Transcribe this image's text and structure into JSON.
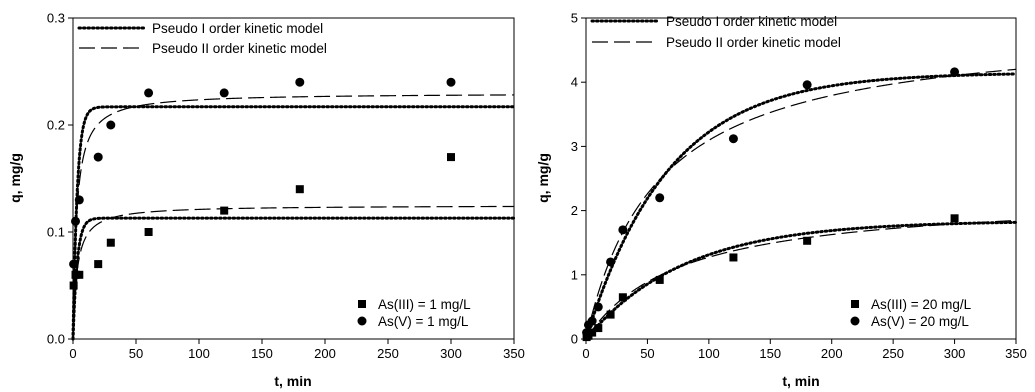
{
  "chart_data": [
    {
      "type": "scatter",
      "xlabel": "t, min",
      "ylabel": "q, mg/g",
      "xlim": [
        0,
        350
      ],
      "ylim": [
        0,
        0.3
      ],
      "x_ticks": [
        "0",
        "50",
        "100",
        "150",
        "200",
        "250",
        "300",
        "350"
      ],
      "y_ticks": [
        "0.0",
        "0.1",
        "0.2",
        "0.3"
      ],
      "x_tick_values": [
        0,
        50,
        100,
        150,
        200,
        250,
        300,
        350
      ],
      "y_tick_values": [
        0,
        0.1,
        0.2,
        0.3
      ],
      "grid": false,
      "legend_models": {
        "placement": "top-left",
        "entries": [
          {
            "label": "Pseudo I order kinetic model",
            "style": "dotted"
          },
          {
            "label": "Pseudo II order kinetic model",
            "style": "dashed"
          }
        ]
      },
      "legend_series": {
        "placement": "bottom-right",
        "entries": [
          "As(III) = 1 mg/L",
          "As(V) = 1 mg/L"
        ]
      },
      "series": [
        {
          "name": "As(III) = 1 mg/L",
          "marker": "square",
          "x": [
            0.5,
            2,
            5,
            20,
            30,
            60,
            120,
            180,
            300
          ],
          "y": [
            0.05,
            0.06,
            0.06,
            0.07,
            0.09,
            0.1,
            0.12,
            0.14,
            0.17
          ]
        },
        {
          "name": "As(V) = 1 mg/L",
          "marker": "circle",
          "x": [
            0.5,
            2,
            5,
            20,
            30,
            60,
            120,
            180,
            300
          ],
          "y": [
            0.07,
            0.11,
            0.13,
            0.17,
            0.2,
            0.23,
            0.23,
            0.24,
            0.24
          ]
        }
      ],
      "models": [
        {
          "series": "As(III) = 1 mg/L",
          "kind": "pseudo-first-order",
          "qe": 0.113,
          "k": 0.3
        },
        {
          "series": "As(III) = 1 mg/L",
          "kind": "pseudo-second-order",
          "qe": 0.125,
          "k": 2.5
        },
        {
          "series": "As(V) = 1 mg/L",
          "kind": "pseudo-first-order",
          "qe": 0.217,
          "k": 0.3
        },
        {
          "series": "As(V) = 1 mg/L",
          "kind": "pseudo-second-order",
          "qe": 0.23,
          "k": 1.5
        }
      ]
    },
    {
      "type": "scatter",
      "xlabel": "t, min",
      "ylabel": "q, mg/g",
      "xlim": [
        0,
        350
      ],
      "ylim": [
        0,
        5
      ],
      "x_ticks": [
        "0",
        "50",
        "100",
        "150",
        "200",
        "250",
        "300",
        "350"
      ],
      "y_ticks": [
        "0",
        "1",
        "2",
        "3",
        "4",
        "5"
      ],
      "x_tick_values": [
        0,
        50,
        100,
        150,
        200,
        250,
        300,
        350
      ],
      "y_tick_values": [
        0,
        1,
        2,
        3,
        4,
        5
      ],
      "grid": false,
      "legend_models": {
        "placement": "top-left",
        "entries": [
          {
            "label": "Pseudo I order kinetic model",
            "style": "dotted"
          },
          {
            "label": "Pseudo II order kinetic model",
            "style": "dashed"
          }
        ]
      },
      "legend_series": {
        "placement": "bottom-right",
        "entries": [
          "As(III) = 20 mg/L",
          "As(V) = 20 mg/L"
        ]
      },
      "series": [
        {
          "name": "As(III) = 20 mg/L",
          "marker": "square",
          "x": [
            0.5,
            2,
            5,
            10,
            20,
            30,
            60,
            120,
            180,
            300
          ],
          "y": [
            0.03,
            0.05,
            0.1,
            0.17,
            0.38,
            0.65,
            0.92,
            1.27,
            1.53,
            1.88
          ]
        },
        {
          "name": "As(V) = 20 mg/L",
          "marker": "circle",
          "x": [
            0.5,
            2,
            5,
            10,
            20,
            30,
            60,
            120,
            180,
            300
          ],
          "y": [
            0.1,
            0.22,
            0.28,
            0.5,
            1.2,
            1.7,
            2.2,
            3.12,
            3.96,
            4.16
          ]
        }
      ],
      "models": [
        {
          "series": "As(III) = 20 mg/L",
          "kind": "pseudo-first-order",
          "qe": 1.84,
          "k": 0.0125
        },
        {
          "series": "As(III) = 20 mg/L",
          "kind": "pseudo-second-order",
          "qe": 2.25,
          "k": 0.0058
        },
        {
          "series": "As(V) = 20 mg/L",
          "kind": "pseudo-first-order",
          "qe": 4.15,
          "k": 0.015
        },
        {
          "series": "As(V) = 20 mg/L",
          "kind": "pseudo-second-order",
          "qe": 4.9,
          "k": 0.0035
        }
      ]
    }
  ]
}
